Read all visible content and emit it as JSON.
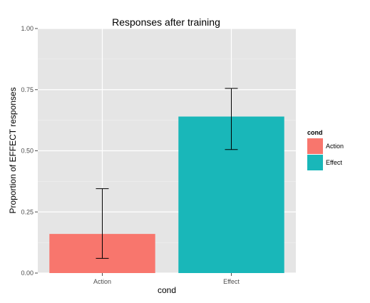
{
  "chart_data": {
    "type": "bar",
    "title": "Responses after training",
    "xlabel": "cond",
    "ylabel": "Proportion of EFFECT responses",
    "categories": [
      "Action",
      "Effect"
    ],
    "values": [
      0.16,
      0.64
    ],
    "error_low": [
      0.06,
      0.505
    ],
    "error_high": [
      0.345,
      0.755
    ],
    "ylim": [
      0,
      1
    ],
    "yticks": [
      0,
      0.25,
      0.5,
      0.75,
      1
    ],
    "ytick_labels": [
      "0.00",
      "0.25",
      "0.50",
      "0.75",
      "1.00"
    ],
    "grid": true,
    "legend": {
      "title": "cond",
      "placement": "right",
      "entries": [
        "Action",
        "Effect"
      ]
    },
    "colors": {
      "Action": "#F8766D",
      "Effect": "#19B7B9",
      "panel_bg": "#E5E5E5",
      "grid": "#FFFFFF",
      "tick_text": "#4D4D4D"
    }
  }
}
